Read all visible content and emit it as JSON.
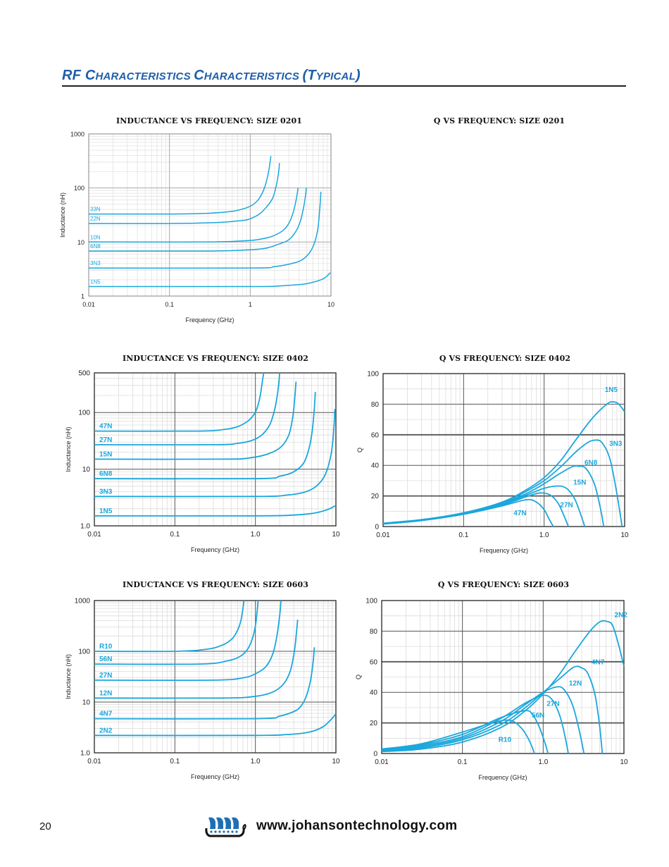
{
  "header": {
    "title_parts": [
      {
        "big": "RF C",
        "small": "HARACTERISTICS "
      },
      {
        "big": "C",
        "small": "HARACTERISTICS "
      },
      {
        "big": "(T",
        "small": "YPICAL"
      },
      {
        "big": ")",
        "small": ""
      }
    ],
    "title_full": "RF Characteristics Characteristics (Typical)"
  },
  "footer": {
    "page_number": "20",
    "url": "www.johansontechnology.com",
    "logo_icon": "viking-ship-logo-icon"
  },
  "colors": {
    "curve": "#1aa7dc",
    "title": "#1f5ea8",
    "grid_major": "#6d6d6d",
    "grid_minor": "#d9d9d9"
  },
  "empty_panel_title": "Q VS FREQUENCY: SIZE 0201",
  "chart_data": [
    {
      "id": "ind0201",
      "type": "line",
      "title": "INDUCTANCE VS FREQUENCY: SIZE 0201",
      "xlabel": "Frequency (GHz)",
      "ylabel": "Inductance (nH)",
      "xscale": "log",
      "yscale": "log",
      "xlim": [
        0.01,
        10
      ],
      "ylim": [
        1,
        1000
      ],
      "xticks": [
        "0.01",
        "0.1",
        "1",
        "10"
      ],
      "yticks": [
        "1",
        "10",
        "100",
        "1000"
      ],
      "grid": true,
      "series": [
        {
          "name": "33N",
          "x": [
            0.01,
            0.1,
            0.3,
            0.6,
            0.9,
            1.1,
            1.3,
            1.5,
            1.65,
            1.75,
            1.8
          ],
          "y": [
            33,
            33,
            34,
            37,
            43,
            50,
            65,
            100,
            170,
            280,
            390
          ]
        },
        {
          "name": "22N",
          "x": [
            0.01,
            0.1,
            0.4,
            0.8,
            1.0,
            1.3,
            1.6,
            1.9,
            2.1,
            2.25,
            2.3
          ],
          "y": [
            22,
            22,
            23,
            25,
            27,
            33,
            45,
            65,
            110,
            200,
            290
          ]
        },
        {
          "name": "10N",
          "x": [
            0.01,
            0.3,
            0.8,
            1.2,
            1.8,
            2.5,
            3.0,
            3.4,
            3.7,
            3.85,
            3.9
          ],
          "y": [
            10,
            10,
            10.5,
            11,
            12.5,
            16,
            22,
            35,
            60,
            85,
            100
          ]
        },
        {
          "name": "6N8",
          "x": [
            0.01,
            0.3,
            0.85,
            1.5,
            2.2,
            3.0,
            3.7,
            4.2,
            4.6,
            4.85,
            4.95
          ],
          "y": [
            6.8,
            6.8,
            7.1,
            7.6,
            9,
            11,
            16,
            25,
            45,
            75,
            100
          ]
        },
        {
          "name": "3N3",
          "x": [
            0.01,
            1.0,
            2.0,
            3.5,
            4.5,
            5.5,
            6.3,
            6.9,
            7.2,
            7.4,
            7.5
          ],
          "y": [
            3.3,
            3.3,
            3.5,
            4.1,
            4.8,
            6.5,
            10,
            18,
            35,
            60,
            85
          ]
        },
        {
          "name": "1N5",
          "x": [
            0.01,
            1.0,
            2.0,
            3.0,
            4.5,
            6.0,
            7.5,
            8.5,
            9.2,
            9.8
          ],
          "y": [
            1.5,
            1.5,
            1.52,
            1.58,
            1.65,
            1.8,
            2.0,
            2.2,
            2.45,
            2.7
          ]
        }
      ]
    },
    {
      "id": "ind0402",
      "type": "line",
      "title": "INDUCTANCE VS FREQUENCY: SIZE 0402",
      "xlabel": "Frequency (GHz)",
      "ylabel": "Inductance (nH)",
      "xscale": "log",
      "yscale": "log",
      "xlim": [
        0.01,
        10
      ],
      "ylim": [
        1,
        500
      ],
      "xticks": [
        "0.01",
        "0.1",
        "1.0",
        "10"
      ],
      "yticks": [
        "1.0",
        "10",
        "100",
        "500"
      ],
      "grid": true,
      "series": [
        {
          "name": "47N",
          "x": [
            0.01,
            0.2,
            0.4,
            0.6,
            0.8,
            0.95,
            1.05,
            1.15,
            1.22,
            1.27
          ],
          "y": [
            47,
            47,
            50,
            56,
            70,
            90,
            120,
            200,
            350,
            500
          ]
        },
        {
          "name": "27N",
          "x": [
            0.01,
            0.3,
            0.6,
            0.9,
            1.2,
            1.5,
            1.7,
            1.85,
            1.95,
            2.0
          ],
          "y": [
            27,
            27,
            28.5,
            32,
            40,
            60,
            100,
            180,
            320,
            500
          ]
        },
        {
          "name": "15N",
          "x": [
            0.01,
            0.4,
            0.9,
            1.5,
            2.1,
            2.6,
            2.9,
            3.05,
            3.15,
            3.2
          ],
          "y": [
            15,
            15,
            16,
            19,
            25,
            40,
            80,
            150,
            260,
            350
          ]
        },
        {
          "name": "6N8",
          "x": [
            0.01,
            1.0,
            2.0,
            3.0,
            4.0,
            4.7,
            5.1,
            5.35,
            5.5,
            5.55
          ],
          "y": [
            6.8,
            6.8,
            7.5,
            9,
            13,
            25,
            50,
            100,
            180,
            230
          ]
        },
        {
          "name": "3N3",
          "x": [
            0.01,
            1.0,
            2.5,
            4.0,
            5.5,
            7.0,
            8.0,
            8.8,
            9.3,
            9.6,
            9.7
          ],
          "y": [
            3.3,
            3.3,
            3.5,
            3.9,
            4.8,
            7,
            11,
            20,
            40,
            80,
            115
          ]
        },
        {
          "name": "1N5",
          "x": [
            0.01,
            1.0,
            3.0,
            5.0,
            6.5,
            8.0,
            9.2,
            10.0
          ],
          "y": [
            1.5,
            1.5,
            1.55,
            1.65,
            1.78,
            1.95,
            2.15,
            2.3
          ]
        }
      ]
    },
    {
      "id": "q0402",
      "type": "line",
      "title": "Q VS FREQUENCY: SIZE 0402",
      "xlabel": "Frequency (GHz)",
      "ylabel": "Q",
      "xscale": "log",
      "yscale": "linear",
      "xlim": [
        0.01,
        10
      ],
      "ylim": [
        0,
        100
      ],
      "xticks": [
        "0.01",
        "0.1",
        "1.0",
        "10"
      ],
      "yticks": [
        "0",
        "20",
        "40",
        "60",
        "80",
        "100"
      ],
      "grid": true,
      "series": [
        {
          "name": "1N5",
          "x": [
            0.01,
            0.03,
            0.1,
            0.3,
            0.6,
            1.0,
            1.6,
            2.5,
            4.0,
            6.0,
            7.2,
            8.5,
            10.0
          ],
          "y": [
            2.2,
            4.5,
            9,
            16,
            24,
            32,
            43,
            57,
            71,
            80,
            81.5,
            80,
            75
          ]
        },
        {
          "name": "3N3",
          "x": [
            0.01,
            0.03,
            0.1,
            0.3,
            0.6,
            1.0,
            1.6,
            2.5,
            3.5,
            4.3,
            5.2,
            6.5,
            7.8,
            8.8,
            9.3
          ],
          "y": [
            2.0,
            4.3,
            8.8,
            15.5,
            23,
            30,
            39,
            49,
            55,
            56.5,
            55,
            45,
            25,
            8,
            0
          ]
        },
        {
          "name": "6N8",
          "x": [
            0.01,
            0.03,
            0.1,
            0.3,
            0.6,
            1.0,
            1.5,
            2.2,
            2.7,
            3.3,
            4.2,
            5.0,
            5.5
          ],
          "y": [
            1.9,
            4.2,
            8.6,
            15,
            21.5,
            28,
            34,
            39,
            39.5,
            38,
            28,
            12,
            0
          ]
        },
        {
          "name": "15N",
          "x": [
            0.01,
            0.03,
            0.1,
            0.3,
            0.6,
            1.0,
            1.45,
            1.9,
            2.4,
            2.8,
            3.2
          ],
          "y": [
            1.8,
            4.1,
            8.4,
            14.5,
            20.5,
            25,
            26.5,
            25,
            18,
            9,
            0
          ]
        },
        {
          "name": "27N",
          "x": [
            0.01,
            0.03,
            0.1,
            0.3,
            0.6,
            0.9,
            1.2,
            1.5,
            1.8,
            2.0
          ],
          "y": [
            1.7,
            4.0,
            8.2,
            14,
            19.5,
            22,
            20.5,
            15,
            6,
            0
          ]
        },
        {
          "name": "47N",
          "x": [
            0.01,
            0.03,
            0.1,
            0.3,
            0.6,
            0.8,
            1.0,
            1.15,
            1.3
          ],
          "y": [
            1.6,
            3.9,
            8.0,
            13.5,
            17.5,
            16,
            11,
            5,
            0
          ]
        }
      ]
    },
    {
      "id": "ind0603",
      "type": "line",
      "title": "INDUCTANCE VS FREQUENCY: SIZE 0603",
      "xlabel": "Frequency (GHz)",
      "ylabel": "Inductance (nH)",
      "xscale": "log",
      "yscale": "log",
      "xlim": [
        0.01,
        10
      ],
      "ylim": [
        1,
        1000
      ],
      "xticks": [
        "0.01",
        "0.1",
        "1.0",
        "10"
      ],
      "yticks": [
        "1.0",
        "10",
        "100",
        "1000"
      ],
      "grid": true,
      "series": [
        {
          "name": "R10",
          "x": [
            0.01,
            0.1,
            0.25,
            0.4,
            0.52,
            0.6,
            0.66,
            0.7,
            0.72
          ],
          "y": [
            100,
            100,
            110,
            135,
            180,
            260,
            400,
            700,
            1000
          ]
        },
        {
          "name": "56N",
          "x": [
            0.01,
            0.2,
            0.45,
            0.65,
            0.8,
            0.92,
            1.0,
            1.05,
            1.08
          ],
          "y": [
            56,
            56,
            65,
            80,
            110,
            180,
            320,
            600,
            1000
          ]
        },
        {
          "name": "27N",
          "x": [
            0.01,
            0.3,
            0.7,
            1.0,
            1.35,
            1.65,
            1.85,
            2.0,
            2.08
          ],
          "y": [
            27,
            27,
            30,
            36,
            50,
            90,
            200,
            500,
            1000
          ]
        },
        {
          "name": "12N",
          "x": [
            0.01,
            0.4,
            1.0,
            1.6,
            2.2,
            2.7,
            3.05,
            3.25,
            3.35
          ],
          "y": [
            12,
            12,
            13,
            15.5,
            22,
            40,
            100,
            250,
            420
          ]
        },
        {
          "name": "4N7",
          "x": [
            0.01,
            1.0,
            2.0,
            3.0,
            3.6,
            4.2,
            4.8,
            5.2,
            5.4
          ],
          "y": [
            4.7,
            4.7,
            5.3,
            6.5,
            8,
            12,
            25,
            60,
            120
          ]
        },
        {
          "name": "2N2",
          "x": [
            0.01,
            1.0,
            2.5,
            4.0,
            5.5,
            7.0,
            8.2,
            9.2,
            10.0
          ],
          "y": [
            2.2,
            2.2,
            2.3,
            2.45,
            2.75,
            3.3,
            4.1,
            5.0,
            5.9
          ]
        }
      ]
    },
    {
      "id": "q0603",
      "type": "line",
      "title": "Q VS FREQUENCY: SIZE 0603",
      "xlabel": "Frequency (GHz)",
      "ylabel": "Q",
      "xscale": "log",
      "yscale": "linear",
      "xlim": [
        0.01,
        10
      ],
      "ylim": [
        0,
        100
      ],
      "xticks": [
        "0.01",
        "0.1",
        "1.0",
        "10"
      ],
      "yticks": [
        "0",
        "20",
        "40",
        "60",
        "80",
        "100"
      ],
      "grid": true,
      "series": [
        {
          "name": "2N2",
          "x": [
            0.01,
            0.03,
            0.1,
            0.3,
            0.6,
            1.0,
            1.6,
            2.5,
            3.8,
            5.0,
            6.0,
            7.2,
            8.5,
            10.0
          ],
          "y": [
            1.2,
            2.8,
            7.5,
            17,
            28,
            39,
            52,
            67,
            80,
            86,
            86.5,
            84,
            72,
            57
          ]
        },
        {
          "name": "4N7",
          "x": [
            0.01,
            0.03,
            0.1,
            0.3,
            0.6,
            1.0,
            1.6,
            2.4,
            3.0,
            3.6,
            4.4,
            5.0,
            5.4
          ],
          "y": [
            1.6,
            3.5,
            9,
            19,
            30,
            40,
            49,
            56.5,
            56,
            52,
            38,
            18,
            0
          ]
        },
        {
          "name": "12N",
          "x": [
            0.01,
            0.03,
            0.1,
            0.3,
            0.6,
            1.0,
            1.45,
            1.8,
            2.3,
            2.8,
            3.2
          ],
          "y": [
            2.0,
            4.2,
            10,
            21,
            32,
            40,
            43.5,
            42,
            32,
            15,
            0
          ]
        },
        {
          "name": "27N",
          "x": [
            0.01,
            0.03,
            0.1,
            0.3,
            0.6,
            1.0,
            1.3,
            1.6,
            1.85,
            2.05
          ],
          "y": [
            2.4,
            5.0,
            11,
            23,
            33,
            38,
            35,
            25,
            12,
            0
          ]
        },
        {
          "name": "56N",
          "x": [
            0.01,
            0.03,
            0.1,
            0.3,
            0.6,
            0.75,
            0.9,
            1.05,
            1.15
          ],
          "y": [
            2.7,
            5.6,
            12.5,
            23.5,
            28,
            25,
            17,
            7,
            0
          ]
        },
        {
          "name": "R10",
          "x": [
            0.01,
            0.03,
            0.1,
            0.25,
            0.4,
            0.55,
            0.68,
            0.78
          ],
          "y": [
            3.0,
            6.2,
            14,
            20.5,
            21.5,
            16,
            8,
            0
          ]
        }
      ]
    }
  ]
}
